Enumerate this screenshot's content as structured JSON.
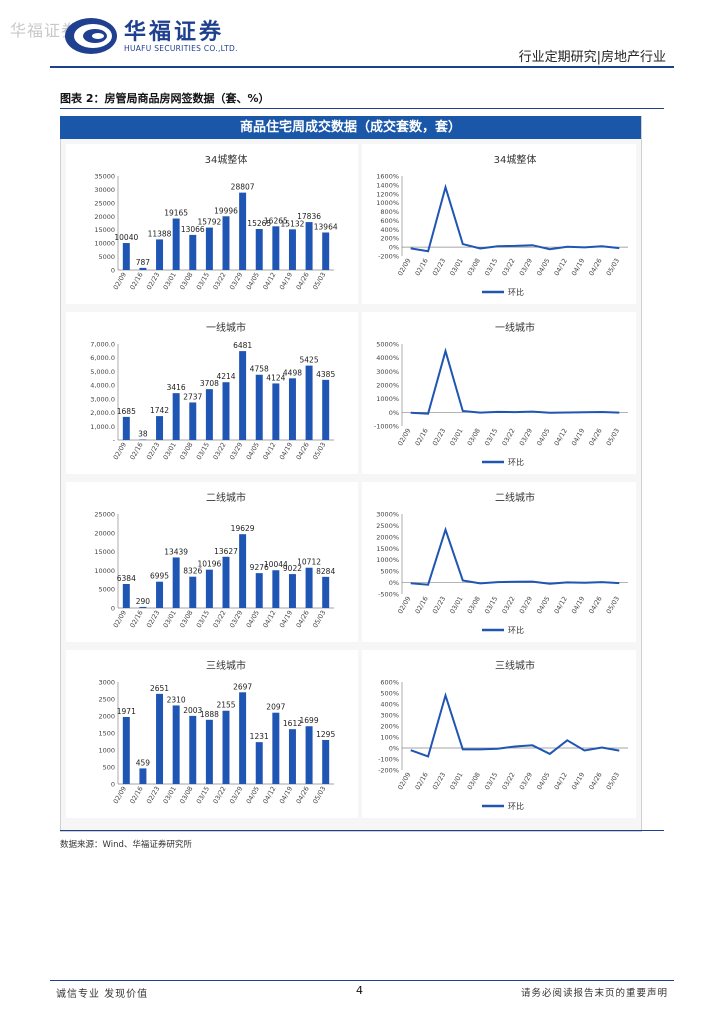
{
  "header": {
    "watermark": "华福证券",
    "company_cn": "华福证券",
    "company_en": "HUAFU SECURITIES CO.,LTD.",
    "report_type": "行业定期研究|房地产行业"
  },
  "figure": {
    "title": "图表 2：房管局商品房网签数据（套、%）",
    "panel_header": "商品住宅周成交数据（成交套数，套）",
    "source": "数据来源：Wind、华福证券研究所"
  },
  "colors": {
    "bar": "#1f55b3",
    "line": "#1f55b3",
    "header": "#1a57a8",
    "brand": "#1f3f8f"
  },
  "chart_data": [
    {
      "type": "bar",
      "title": "34城整体",
      "categories": [
        "02/09",
        "02/16",
        "02/23",
        "03/01",
        "03/08",
        "03/15",
        "03/22",
        "03/29",
        "04/05",
        "04/12",
        "04/19",
        "04/26",
        "05/03"
      ],
      "values": [
        10040,
        787,
        11388,
        19165,
        13066,
        15792,
        19996,
        28807,
        15265,
        16265,
        15132,
        17836,
        13964
      ],
      "labels": [
        "10040",
        "787",
        "11388",
        "19165",
        "13066",
        "15792",
        "19996",
        "28807",
        "15265",
        "16265",
        "15132",
        "17836",
        "13964"
      ],
      "ylim": [
        0,
        35000
      ],
      "yticks": [
        "0",
        "5000",
        "10000",
        "15000",
        "20000",
        "25000",
        "30000",
        "35000"
      ]
    },
    {
      "type": "line",
      "title": "34城整体",
      "categories": [
        "02/09",
        "02/16",
        "02/23",
        "03/01",
        "03/08",
        "03/15",
        "03/22",
        "03/29",
        "04/05",
        "04/12",
        "04/19",
        "04/26",
        "05/03"
      ],
      "series": [
        {
          "name": "环比",
          "values": [
            -30,
            -92,
            1347,
            68,
            -32,
            21,
            27,
            44,
            -47,
            7,
            -7,
            18,
            -22
          ]
        }
      ],
      "ylim": [
        -200,
        1600
      ],
      "yticks": [
        "-200%",
        "0%",
        "200%",
        "400%",
        "600%",
        "800%",
        "1000%",
        "1200%",
        "1400%",
        "1600%"
      ]
    },
    {
      "type": "bar",
      "title": "一线城市",
      "categories": [
        "02/09",
        "02/16",
        "02/23",
        "03/01",
        "03/08",
        "03/15",
        "03/22",
        "03/29",
        "04/05",
        "04/12",
        "04/19",
        "04/26",
        "05/03"
      ],
      "values": [
        1685,
        38,
        1742,
        3416,
        2737,
        3708,
        4214,
        6481,
        4758,
        4124,
        4498,
        5425,
        4385
      ],
      "labels": [
        "1685",
        "38",
        "1742",
        "3416",
        "2737",
        "3708",
        "4214",
        "6481",
        "4758",
        "4124",
        "4498",
        "5425",
        "4385"
      ],
      "ylim": [
        0,
        7000
      ],
      "yticks": [
        "-",
        "1,000.0",
        "2,000.0",
        "3,000.0",
        "4,000.0",
        "5,000.0",
        "6,000.0",
        "7,000.0"
      ]
    },
    {
      "type": "line",
      "title": "一线城市",
      "categories": [
        "02/09",
        "02/16",
        "02/23",
        "03/01",
        "03/08",
        "03/15",
        "03/22",
        "03/29",
        "04/05",
        "04/12",
        "04/19",
        "04/26",
        "05/03"
      ],
      "series": [
        {
          "name": "环比",
          "values": [
            -30,
            -98,
            4484,
            96,
            -20,
            35,
            14,
            54,
            -27,
            -13,
            9,
            21,
            -19
          ]
        }
      ],
      "ylim": [
        -1000,
        5000
      ],
      "yticks": [
        "-1000%",
        "0%",
        "1000%",
        "2000%",
        "3000%",
        "4000%",
        "5000%"
      ]
    },
    {
      "type": "bar",
      "title": "二线城市",
      "categories": [
        "02/09",
        "02/16",
        "02/23",
        "03/01",
        "03/08",
        "03/15",
        "03/22",
        "03/29",
        "04/05",
        "04/12",
        "04/19",
        "04/26",
        "05/03"
      ],
      "values": [
        6384,
        290,
        6995,
        13439,
        8326,
        10196,
        13627,
        19629,
        9276,
        10044,
        9022,
        10712,
        8284
      ],
      "labels": [
        "6384",
        "290",
        "6995",
        "13439",
        "8326",
        "10196",
        "13627",
        "19629",
        "9276",
        "10044",
        "9022",
        "10712",
        "8284"
      ],
      "ylim": [
        0,
        25000
      ],
      "yticks": [
        "0",
        "5000",
        "10000",
        "15000",
        "20000",
        "25000"
      ]
    },
    {
      "type": "line",
      "title": "二线城市",
      "categories": [
        "02/09",
        "02/16",
        "02/23",
        "03/01",
        "03/08",
        "03/15",
        "03/22",
        "03/29",
        "04/05",
        "04/12",
        "04/19",
        "04/26",
        "05/03"
      ],
      "series": [
        {
          "name": "环比",
          "values": [
            -30,
            -95,
            2312,
            92,
            -38,
            22,
            34,
            44,
            -53,
            8,
            -10,
            19,
            -23
          ]
        }
      ],
      "ylim": [
        -500,
        3000
      ],
      "yticks": [
        "-500%",
        "0%",
        "500%",
        "1000%",
        "1500%",
        "2000%",
        "2500%",
        "3000%"
      ]
    },
    {
      "type": "bar",
      "title": "三线城市",
      "categories": [
        "02/09",
        "02/16",
        "02/23",
        "03/01",
        "03/08",
        "03/15",
        "03/22",
        "03/29",
        "04/05",
        "04/12",
        "04/19",
        "04/26",
        "05/03"
      ],
      "values": [
        1971,
        459,
        2651,
        2310,
        2003,
        1888,
        2155,
        2697,
        1231,
        2097,
        1612,
        1699,
        1295
      ],
      "labels": [
        "1971",
        "459",
        "2651",
        "2310",
        "2003",
        "1888",
        "2155",
        "2697",
        "1231",
        "2097",
        "1612",
        "1699",
        "1295"
      ],
      "ylim": [
        0,
        3000
      ],
      "yticks": [
        "0",
        "500",
        "1000",
        "1500",
        "2000",
        "2500",
        "3000"
      ]
    },
    {
      "type": "line",
      "title": "三线城市",
      "categories": [
        "02/09",
        "02/16",
        "02/23",
        "03/01",
        "03/08",
        "03/15",
        "03/22",
        "03/29",
        "04/05",
        "04/12",
        "04/19",
        "04/26",
        "05/03"
      ],
      "series": [
        {
          "name": "环比",
          "values": [
            -20,
            -77,
            478,
            -13,
            -13,
            -6,
            14,
            25,
            -54,
            70,
            -23,
            5,
            -24
          ]
        }
      ],
      "ylim": [
        -200,
        600
      ],
      "yticks": [
        "-200%",
        "-100%",
        "0%",
        "100%",
        "200%",
        "300%",
        "400%",
        "500%",
        "600%"
      ]
    }
  ],
  "footer": {
    "left": "诚信专业  发现价值",
    "page": "4",
    "right": "请务必阅读报告末页的重要声明"
  }
}
